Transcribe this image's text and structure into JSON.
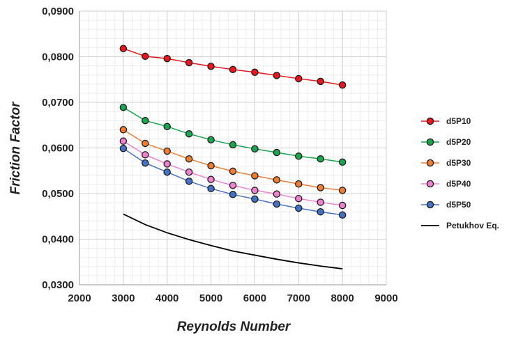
{
  "chart_data": {
    "type": "line",
    "title": "",
    "xlabel": "Reynolds Number",
    "ylabel": "Friction Factor",
    "xlim": [
      2000,
      9000
    ],
    "ylim": [
      0.03,
      0.09
    ],
    "x_ticks": [
      "2000",
      "3000",
      "4000",
      "5000",
      "6000",
      "7000",
      "8000",
      "9000"
    ],
    "y_ticks": [
      "0,0300",
      "0,0400",
      "0,0500",
      "0,0600",
      "0,0700",
      "0,0800",
      "0,0900"
    ],
    "grid": true,
    "legend_position": "right",
    "x": [
      3000,
      3500,
      4000,
      4500,
      5000,
      5500,
      6000,
      6500,
      7000,
      7500,
      8000
    ],
    "series": [
      {
        "name": "d5P10",
        "color": "#e8161d",
        "marker": true,
        "values": [
          0.0818,
          0.0801,
          0.0796,
          0.0787,
          0.0779,
          0.0772,
          0.0766,
          0.0759,
          0.0752,
          0.0746,
          0.0738
        ]
      },
      {
        "name": "d5P20",
        "color": "#1aa64f",
        "marker": true,
        "values": [
          0.0689,
          0.066,
          0.0647,
          0.0631,
          0.0618,
          0.0607,
          0.0598,
          0.059,
          0.0582,
          0.0576,
          0.0569
        ]
      },
      {
        "name": "d5P30",
        "color": "#ed7d31",
        "marker": true,
        "values": [
          0.064,
          0.061,
          0.0593,
          0.0576,
          0.0561,
          0.0549,
          0.0539,
          0.053,
          0.0521,
          0.0513,
          0.0507
        ]
      },
      {
        "name": "d5P40",
        "color": "#ee82d0",
        "marker": true,
        "values": [
          0.0615,
          0.0585,
          0.0565,
          0.0547,
          0.0531,
          0.0518,
          0.0507,
          0.0499,
          0.0489,
          0.0481,
          0.0474
        ]
      },
      {
        "name": "d5P50",
        "color": "#4472c4",
        "marker": true,
        "values": [
          0.0599,
          0.0567,
          0.0547,
          0.0527,
          0.0511,
          0.0498,
          0.0488,
          0.0477,
          0.0468,
          0.046,
          0.0453
        ]
      },
      {
        "name": "Petukhov Eq.",
        "color": "#000000",
        "marker": false,
        "values": [
          0.0455,
          0.0432,
          0.0414,
          0.0399,
          0.0386,
          0.0374,
          0.0365,
          0.0356,
          0.0348,
          0.0341,
          0.0335
        ]
      }
    ]
  }
}
